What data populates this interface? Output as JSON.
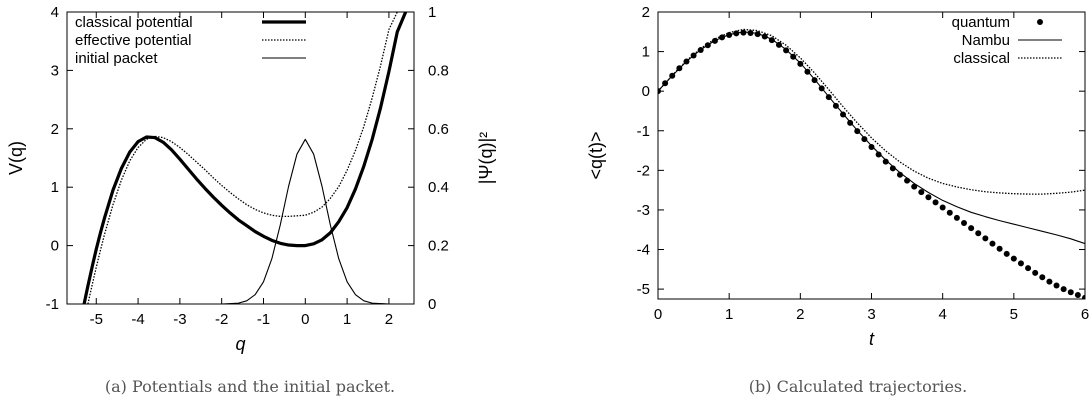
{
  "chart_data": [
    {
      "type": "line",
      "caption": "(a) Potentials and the initial packet.",
      "xlabel": "q",
      "ylabel": "V(q)",
      "y2label": "|Ψ(q)|²",
      "xlim": [
        -5.7,
        2.6
      ],
      "ylim": [
        -1,
        4
      ],
      "y2lim": [
        0,
        1
      ],
      "xticks": [
        "-5",
        "-4",
        "-3",
        "-2",
        "-1",
        "0",
        "1",
        "2"
      ],
      "yticks": [
        "-1",
        "0",
        "1",
        "2",
        "3",
        "4"
      ],
      "y2ticks": [
        "0",
        "0.2",
        "0.4",
        "0.6",
        "0.8",
        "1"
      ],
      "legend_position": "top-left",
      "series": [
        {
          "name": "classical potential",
          "style": "thick-solid",
          "axis": "left",
          "x": [
            -5.3,
            -5.2,
            -5.1,
            -5.0,
            -4.9,
            -4.8,
            -4.6,
            -4.4,
            -4.2,
            -4.0,
            -3.8,
            -3.6,
            -3.4,
            -3.2,
            -3.0,
            -2.8,
            -2.6,
            -2.4,
            -2.2,
            -2.0,
            -1.8,
            -1.6,
            -1.4,
            -1.2,
            -1.0,
            -0.8,
            -0.6,
            -0.4,
            -0.2,
            0.0,
            0.2,
            0.4,
            0.6,
            0.8,
            1.0,
            1.2,
            1.4,
            1.6,
            1.8,
            2.0,
            2.2,
            2.4
          ],
          "y": [
            -1.03,
            -0.69,
            -0.37,
            -0.06,
            0.22,
            0.48,
            0.95,
            1.32,
            1.6,
            1.78,
            1.86,
            1.85,
            1.77,
            1.64,
            1.48,
            1.31,
            1.14,
            0.98,
            0.83,
            0.69,
            0.56,
            0.44,
            0.34,
            0.24,
            0.16,
            0.09,
            0.04,
            0.01,
            0.0,
            0.0,
            0.03,
            0.1,
            0.22,
            0.41,
            0.65,
            0.97,
            1.36,
            1.82,
            2.36,
            2.98,
            3.66,
            4.0
          ]
        },
        {
          "name": "effective potential",
          "style": "dotted",
          "axis": "left",
          "x": [
            -5.2,
            -5.1,
            -5.0,
            -4.9,
            -4.8,
            -4.6,
            -4.4,
            -4.2,
            -4.0,
            -3.8,
            -3.6,
            -3.4,
            -3.2,
            -3.0,
            -2.8,
            -2.6,
            -2.4,
            -2.2,
            -2.0,
            -1.8,
            -1.6,
            -1.4,
            -1.2,
            -1.0,
            -0.8,
            -0.6,
            -0.4,
            -0.2,
            0.0,
            0.2,
            0.4,
            0.6,
            0.8,
            1.0,
            1.2,
            1.4,
            1.6,
            1.8,
            2.0,
            2.2
          ],
          "y": [
            -1.0,
            -0.68,
            -0.37,
            -0.08,
            0.2,
            0.7,
            1.12,
            1.45,
            1.68,
            1.82,
            1.87,
            1.85,
            1.78,
            1.68,
            1.56,
            1.43,
            1.3,
            1.16,
            1.03,
            0.91,
            0.8,
            0.7,
            0.62,
            0.56,
            0.52,
            0.5,
            0.5,
            0.51,
            0.52,
            0.57,
            0.66,
            0.81,
            1.01,
            1.29,
            1.63,
            2.04,
            2.53,
            3.08,
            3.7,
            4.0
          ]
        },
        {
          "name": "initial packet",
          "style": "thin-solid",
          "axis": "right",
          "x": [
            -5.7,
            -2.0,
            -1.6,
            -1.4,
            -1.2,
            -1.0,
            -0.8,
            -0.6,
            -0.4,
            -0.2,
            0.0,
            0.2,
            0.4,
            0.6,
            0.8,
            1.0,
            1.2,
            1.4,
            1.6,
            2.0,
            2.6
          ],
          "y": [
            0.0,
            0.0,
            0.003,
            0.011,
            0.032,
            0.076,
            0.155,
            0.27,
            0.403,
            0.513,
            0.564,
            0.513,
            0.403,
            0.27,
            0.155,
            0.076,
            0.032,
            0.011,
            0.003,
            0.0,
            0.0
          ]
        }
      ]
    },
    {
      "type": "line",
      "caption": "(b) Calculated trajectories.",
      "xlabel": "t",
      "ylabel": "<q(t)>",
      "xlim": [
        0,
        6
      ],
      "ylim": [
        -5.25,
        2
      ],
      "xticks": [
        "0",
        "1",
        "2",
        "3",
        "4",
        "5",
        "6"
      ],
      "yticks": [
        "-5",
        "-4",
        "-3",
        "-2",
        "-1",
        "0",
        "1",
        "2"
      ],
      "legend_position": "top-right",
      "series": [
        {
          "name": "quantum",
          "style": "points",
          "x": [
            0.0,
            0.1,
            0.2,
            0.3,
            0.4,
            0.5,
            0.6,
            0.7,
            0.8,
            0.9,
            1.0,
            1.1,
            1.2,
            1.3,
            1.4,
            1.5,
            1.6,
            1.7,
            1.8,
            1.9,
            2.0,
            2.1,
            2.2,
            2.3,
            2.4,
            2.5,
            2.6,
            2.7,
            2.8,
            2.9,
            3.0,
            3.1,
            3.2,
            3.3,
            3.4,
            3.5,
            3.6,
            3.7,
            3.8,
            3.9,
            4.0,
            4.1,
            4.2,
            4.3,
            4.4,
            4.5,
            4.6,
            4.7,
            4.8,
            4.9,
            5.0,
            5.1,
            5.2,
            5.3,
            5.4,
            5.5,
            5.6,
            5.7,
            5.8,
            5.9,
            6.0
          ],
          "y": [
            0.0,
            0.2,
            0.39,
            0.58,
            0.75,
            0.9,
            1.04,
            1.16,
            1.27,
            1.36,
            1.42,
            1.46,
            1.48,
            1.47,
            1.44,
            1.38,
            1.29,
            1.17,
            1.03,
            0.87,
            0.69,
            0.49,
            0.28,
            0.07,
            -0.15,
            -0.37,
            -0.59,
            -0.8,
            -1.01,
            -1.21,
            -1.41,
            -1.6,
            -1.78,
            -1.95,
            -2.11,
            -2.26,
            -2.41,
            -2.55,
            -2.68,
            -2.81,
            -2.94,
            -3.07,
            -3.2,
            -3.33,
            -3.46,
            -3.59,
            -3.72,
            -3.85,
            -3.98,
            -4.11,
            -4.23,
            -4.35,
            -4.47,
            -4.59,
            -4.7,
            -4.81,
            -4.91,
            -5.0,
            -5.08,
            -5.15,
            -5.22
          ]
        },
        {
          "name": "Nambu",
          "style": "thin-solid",
          "x": [
            0.0,
            0.2,
            0.4,
            0.6,
            0.8,
            1.0,
            1.2,
            1.4,
            1.6,
            1.8,
            2.0,
            2.2,
            2.4,
            2.6,
            2.8,
            3.0,
            3.2,
            3.4,
            3.6,
            3.8,
            4.0,
            4.2,
            4.4,
            4.6,
            4.8,
            5.0,
            5.2,
            5.4,
            5.6,
            5.8,
            6.0
          ],
          "y": [
            0.0,
            0.39,
            0.75,
            1.05,
            1.28,
            1.43,
            1.5,
            1.46,
            1.31,
            1.05,
            0.71,
            0.3,
            -0.14,
            -0.57,
            -0.99,
            -1.38,
            -1.74,
            -2.06,
            -2.33,
            -2.56,
            -2.76,
            -2.92,
            -3.06,
            -3.17,
            -3.27,
            -3.36,
            -3.45,
            -3.54,
            -3.63,
            -3.73,
            -3.85
          ]
        },
        {
          "name": "classical",
          "style": "dotted",
          "x": [
            0.0,
            0.2,
            0.4,
            0.6,
            0.8,
            1.0,
            1.2,
            1.4,
            1.6,
            1.8,
            2.0,
            2.2,
            2.4,
            2.6,
            2.8,
            3.0,
            3.2,
            3.4,
            3.6,
            3.8,
            4.0,
            4.2,
            4.4,
            4.6,
            4.8,
            5.0,
            5.2,
            5.4,
            5.6,
            5.8,
            6.0
          ],
          "y": [
            0.0,
            0.4,
            0.77,
            1.08,
            1.32,
            1.48,
            1.56,
            1.53,
            1.4,
            1.16,
            0.84,
            0.46,
            0.04,
            -0.39,
            -0.8,
            -1.18,
            -1.51,
            -1.79,
            -2.02,
            -2.2,
            -2.33,
            -2.42,
            -2.49,
            -2.54,
            -2.57,
            -2.59,
            -2.6,
            -2.6,
            -2.58,
            -2.55,
            -2.5
          ]
        }
      ]
    }
  ]
}
